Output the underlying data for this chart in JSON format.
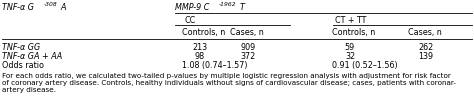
{
  "col1_header_main": "TNF-α G",
  "col1_header_sub": "-308",
  "col1_header_end": "A",
  "col2_header_main": "MMP-9 C",
  "col2_header_sub": "-1962",
  "col2_header_end": "T",
  "subheader_cc": "CC",
  "subheader_ct": "CT + TT",
  "col_controls1": "Controls, n",
  "col_cases1": "Cases, n",
  "col_controls2": "Controls, n",
  "col_cases2": "Cases, n",
  "row1_label": "TNF-α GG",
  "row2_label": "TNF-α GA + AA",
  "row3_label": "Odds ratio",
  "r1c1": "213",
  "r1c2": "909",
  "r1c3": "59",
  "r1c4": "262",
  "r2c1": "98",
  "r2c2": "372",
  "r2c3": "32",
  "r2c4": "139",
  "r3c1": "1.08 (0.74–1.57)",
  "r3c2": "0.91 (0.52–1.56)",
  "footnote_line1": "For each odds ratio, we calculated two-tailed p-values by multiple logistic regression analysis with adjustment for risk factor",
  "footnote_line2": "of coronary artery disease. Controls, healthy individuals without signs of cardiovascular disease; cases, patients with coronar-",
  "footnote_line3": "artery disease.",
  "bg_color": "#ffffff",
  "text_color": "#000000",
  "font_size": 5.8,
  "footnote_size": 5.2
}
